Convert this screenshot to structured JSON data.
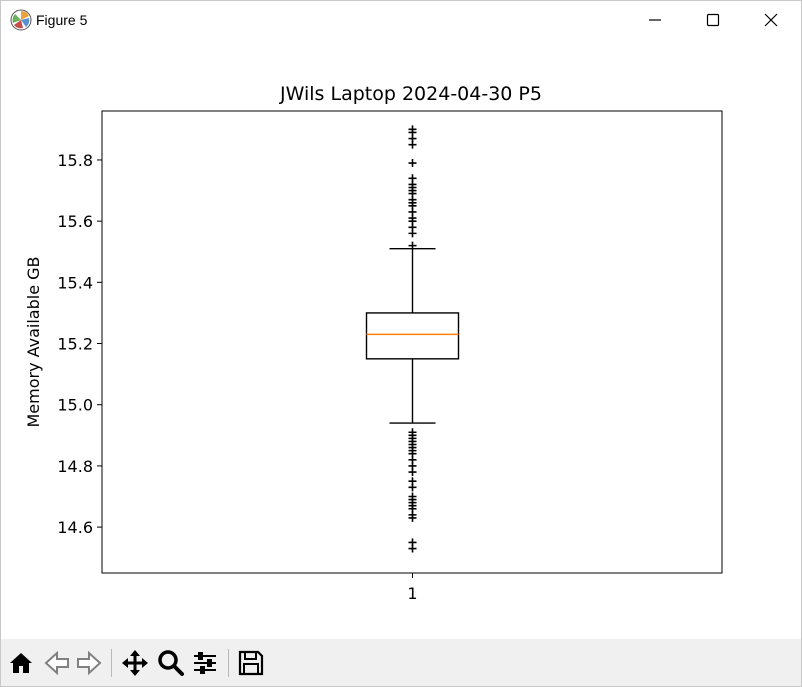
{
  "window": {
    "title": "Figure 5",
    "app_icon": "matplotlib-icon",
    "controls": [
      "minimize-icon",
      "maximize-icon",
      "close-icon"
    ]
  },
  "toolbar": {
    "buttons": [
      {
        "name": "home-button",
        "icon": "home-icon"
      },
      {
        "name": "back-button",
        "icon": "back-arrow-icon"
      },
      {
        "name": "forward-button",
        "icon": "forward-arrow-icon"
      },
      {
        "name": "pan-button",
        "icon": "move-icon"
      },
      {
        "name": "zoom-button",
        "icon": "magnifier-icon"
      },
      {
        "name": "configure-subplots-button",
        "icon": "sliders-icon"
      },
      {
        "name": "save-button",
        "icon": "floppy-disk-icon"
      }
    ]
  },
  "chart_data": {
    "type": "box",
    "title": "JWils Laptop 2024-04-30 P5",
    "xlabel": "",
    "ylabel": "Memory Available GB",
    "categories": [
      "1"
    ],
    "ylim": [
      14.45,
      15.96
    ],
    "yticks": [
      14.6,
      14.8,
      15.0,
      15.2,
      15.4,
      15.6,
      15.8
    ],
    "ytick_labels": [
      "14.6",
      "14.8",
      "15.0",
      "15.2",
      "15.4",
      "15.6",
      "15.8"
    ],
    "grid": false,
    "box": {
      "whisker_low": 14.94,
      "q1": 15.15,
      "median": 15.23,
      "q3": 15.3,
      "whisker_high": 15.51,
      "outliers": [
        15.9,
        15.89,
        15.87,
        15.85,
        15.79,
        15.74,
        15.72,
        15.71,
        15.7,
        15.69,
        15.67,
        15.66,
        15.65,
        15.63,
        15.61,
        15.6,
        15.58,
        15.56,
        15.52,
        14.91,
        14.9,
        14.89,
        14.88,
        14.87,
        14.86,
        14.85,
        14.84,
        14.82,
        14.8,
        14.78,
        14.75,
        14.73,
        14.7,
        14.69,
        14.68,
        14.67,
        14.66,
        14.64,
        14.63,
        14.55,
        14.53
      ]
    },
    "colors": {
      "median": "#ff7f0e",
      "box": "#000000",
      "background": "#ffffff"
    }
  }
}
